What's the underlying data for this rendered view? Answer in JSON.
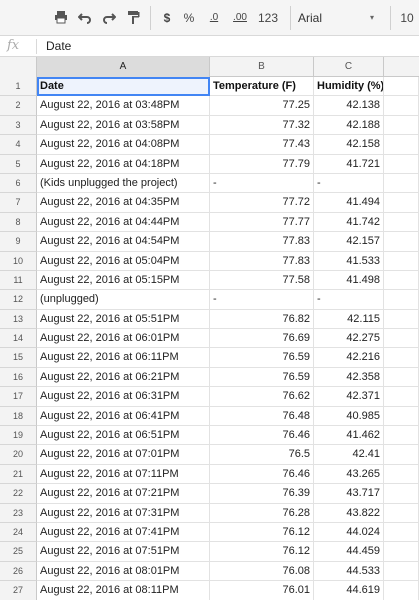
{
  "toolbar": {
    "currency": "$",
    "percent": "%",
    "decrease_decimals": ".0",
    "increase_decimals": ".00",
    "more_formats": "123",
    "font": "Arial",
    "font_size": "10"
  },
  "formula_bar": {
    "fx": "fx",
    "value": "Date"
  },
  "columns": [
    "A",
    "B",
    "C"
  ],
  "header_row": {
    "number": "1",
    "a": "Date",
    "b": "Temperature (F)",
    "c": "Humidity (%)"
  },
  "rows": [
    {
      "n": "2",
      "a": "August 22, 2016 at 03:48PM",
      "b": "77.25",
      "c": "42.138"
    },
    {
      "n": "3",
      "a": "August 22, 2016 at 03:58PM",
      "b": "77.32",
      "c": "42.188"
    },
    {
      "n": "4",
      "a": "August 22, 2016 at 04:08PM",
      "b": "77.43",
      "c": "42.158"
    },
    {
      "n": "5",
      "a": "August 22, 2016 at 04:18PM",
      "b": "77.79",
      "c": "41.721"
    },
    {
      "n": "6",
      "a": "(Kids unplugged the project)",
      "b": "-",
      "c": "-"
    },
    {
      "n": "7",
      "a": "August 22, 2016 at 04:35PM",
      "b": "77.72",
      "c": "41.494"
    },
    {
      "n": "8",
      "a": "August 22, 2016 at 04:44PM",
      "b": "77.77",
      "c": "41.742"
    },
    {
      "n": "9",
      "a": "August 22, 2016 at 04:54PM",
      "b": "77.83",
      "c": "42.157"
    },
    {
      "n": "10",
      "a": "August 22, 2016 at 05:04PM",
      "b": "77.83",
      "c": "41.533"
    },
    {
      "n": "11",
      "a": "August 22, 2016 at 05:15PM",
      "b": "77.58",
      "c": "41.498"
    },
    {
      "n": "12",
      "a": "(unplugged)",
      "b": "-",
      "c": "-"
    },
    {
      "n": "13",
      "a": "August 22, 2016 at 05:51PM",
      "b": "76.82",
      "c": "42.115"
    },
    {
      "n": "14",
      "a": "August 22, 2016 at 06:01PM",
      "b": "76.69",
      "c": "42.275"
    },
    {
      "n": "15",
      "a": "August 22, 2016 at 06:11PM",
      "b": "76.59",
      "c": "42.216"
    },
    {
      "n": "16",
      "a": "August 22, 2016 at 06:21PM",
      "b": "76.59",
      "c": "42.358"
    },
    {
      "n": "17",
      "a": "August 22, 2016 at 06:31PM",
      "b": "76.62",
      "c": "42.371"
    },
    {
      "n": "18",
      "a": "August 22, 2016 at 06:41PM",
      "b": "76.48",
      "c": "40.985"
    },
    {
      "n": "19",
      "a": "August 22, 2016 at 06:51PM",
      "b": "76.46",
      "c": "41.462"
    },
    {
      "n": "20",
      "a": "August 22, 2016 at 07:01PM",
      "b": "76.5",
      "c": "42.41"
    },
    {
      "n": "21",
      "a": "August 22, 2016 at 07:11PM",
      "b": "76.46",
      "c": "43.265"
    },
    {
      "n": "22",
      "a": "August 22, 2016 at 07:21PM",
      "b": "76.39",
      "c": "43.717"
    },
    {
      "n": "23",
      "a": "August 22, 2016 at 07:31PM",
      "b": "76.28",
      "c": "43.822"
    },
    {
      "n": "24",
      "a": "August 22, 2016 at 07:41PM",
      "b": "76.12",
      "c": "44.024"
    },
    {
      "n": "25",
      "a": "August 22, 2016 at 07:51PM",
      "b": "76.12",
      "c": "44.459"
    },
    {
      "n": "26",
      "a": "August 22, 2016 at 08:01PM",
      "b": "76.08",
      "c": "44.533"
    },
    {
      "n": "27",
      "a": "August 22, 2016 at 08:11PM",
      "b": "76.01",
      "c": "44.619"
    }
  ],
  "icons": [
    "print-icon",
    "undo-icon",
    "redo-icon",
    "paint-format-icon",
    "fx-icon",
    "dropdown-caret-icon"
  ],
  "colors": {
    "selection": "#4285f4",
    "header_bg": "#f3f3f3",
    "grid_line": "#e2e2e2"
  }
}
